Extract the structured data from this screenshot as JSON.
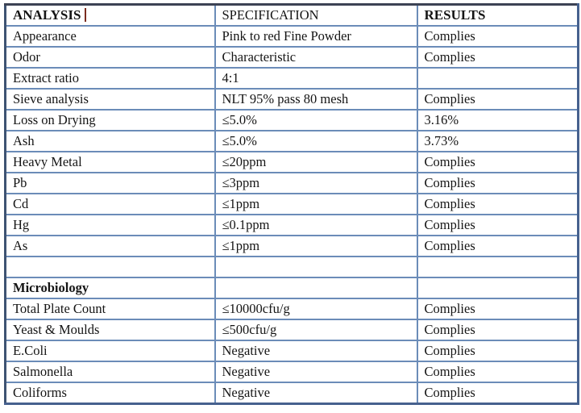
{
  "table": {
    "header": {
      "columns": [
        "ANALYSIS",
        "SPECIFICATION",
        "RESULTS"
      ]
    },
    "rows": [
      {
        "analysis": "Appearance",
        "specification": "Pink to red Fine Powder",
        "results": "Complies"
      },
      {
        "analysis": "Odor",
        "specification": "Characteristic",
        "results": "Complies"
      },
      {
        "analysis": "Extract ratio",
        "specification": "4:1",
        "results": ""
      },
      {
        "analysis": "Sieve analysis",
        "specification": "NLT 95% pass 80 mesh",
        "results": "Complies"
      },
      {
        "analysis": "Loss on Drying",
        "specification": "≤5.0%",
        "results": "3.16%"
      },
      {
        "analysis": "Ash",
        "specification": "≤5.0%",
        "results": "3.73%"
      },
      {
        "analysis": "Heavy Metal",
        "specification": "≤20ppm",
        "results": "Complies"
      },
      {
        "analysis": "Pb",
        "specification": "≤3ppm",
        "results": "Complies"
      },
      {
        "analysis": "Cd",
        "specification": "≤1ppm",
        "results": "Complies"
      },
      {
        "analysis": "Hg",
        "specification": "≤0.1ppm",
        "results": "Complies"
      },
      {
        "analysis": "As",
        "specification": "≤1ppm",
        "results": "Complies"
      },
      {
        "analysis": "",
        "specification": "",
        "results": ""
      },
      {
        "analysis": "Microbiology",
        "specification": "",
        "results": "",
        "bold": true
      },
      {
        "analysis": "Total Plate Count",
        "specification": "≤10000cfu/g",
        "results": "Complies"
      },
      {
        "analysis": "Yeast & Moulds",
        "specification": "≤500cfu/g",
        "results": "Complies"
      },
      {
        "analysis": "E.Coli",
        "specification": "Negative",
        "results": "Complies"
      },
      {
        "analysis": "Salmonella",
        "specification": "Negative",
        "results": "Complies"
      },
      {
        "analysis": "Coliforms",
        "specification": "Negative",
        "results": "Complies"
      }
    ]
  },
  "colors": {
    "grid_line": "#6b8cb8",
    "outer_border": "#46618e",
    "top_border": "#3c4254",
    "cursor_artifact": "#7b2d20",
    "text": "#151515",
    "background": "#ffffff"
  }
}
